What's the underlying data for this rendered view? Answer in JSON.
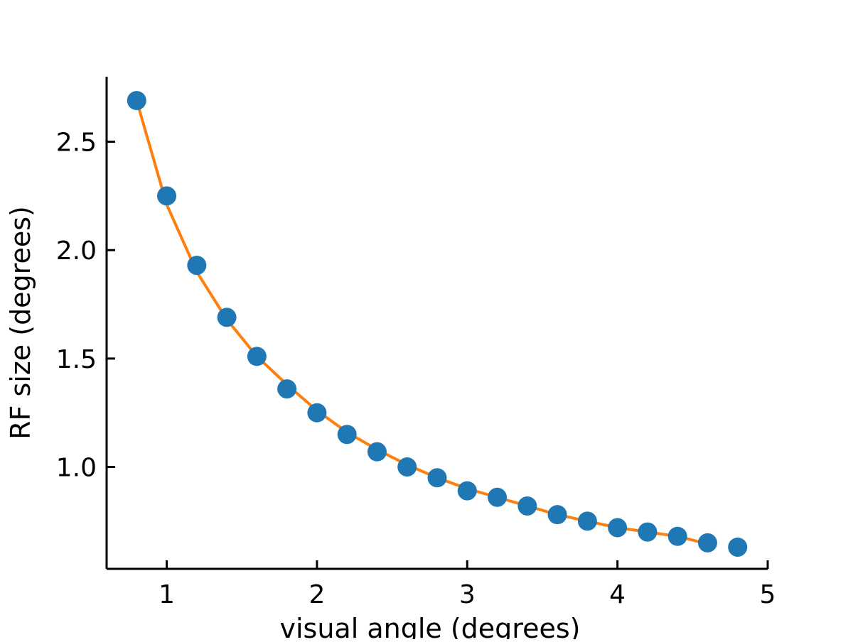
{
  "chart_data": {
    "type": "scatter",
    "title": "",
    "xlabel": "visual angle (degrees)",
    "ylabel": "RF size (degrees)",
    "xlim": [
      0.6,
      5.0
    ],
    "ylim": [
      0.53,
      2.8
    ],
    "xticks": [
      1,
      2,
      3,
      4,
      5
    ],
    "xtick_labels": [
      "1",
      "2",
      "3",
      "4",
      "5"
    ],
    "yticks": [
      1.0,
      1.5,
      2.0,
      2.5
    ],
    "ytick_labels": [
      "1.0",
      "1.5",
      "2.0",
      "2.5"
    ],
    "grid": false,
    "legend": "none",
    "spines": [
      "left",
      "bottom"
    ],
    "series": [
      {
        "kind": "scatter",
        "color": "#1f77b4",
        "x": [
          0.8,
          1.0,
          1.2,
          1.4,
          1.6,
          1.8,
          2.0,
          2.2,
          2.4,
          2.6,
          2.8,
          3.0,
          3.2,
          3.4,
          3.6,
          3.8,
          4.0,
          4.2,
          4.4,
          4.6,
          4.8
        ],
        "y": [
          2.69,
          2.25,
          1.93,
          1.69,
          1.51,
          1.36,
          1.25,
          1.15,
          1.07,
          1.0,
          0.95,
          0.89,
          0.86,
          0.82,
          0.78,
          0.75,
          0.72,
          0.7,
          0.68,
          0.65,
          0.63
        ]
      },
      {
        "kind": "line",
        "color": "#ff7f0e",
        "x": [
          0.8,
          1.0,
          1.2,
          1.4,
          1.6,
          1.8,
          2.0,
          2.2,
          2.4,
          2.6,
          2.8,
          3.0,
          3.2,
          3.4,
          3.6,
          3.8,
          4.0,
          4.2,
          4.4,
          4.63
        ],
        "y": [
          2.69,
          2.21,
          1.9,
          1.68,
          1.51,
          1.38,
          1.26,
          1.16,
          1.08,
          1.01,
          0.95,
          0.9,
          0.86,
          0.82,
          0.78,
          0.75,
          0.72,
          0.7,
          0.68,
          0.64
        ]
      }
    ]
  }
}
